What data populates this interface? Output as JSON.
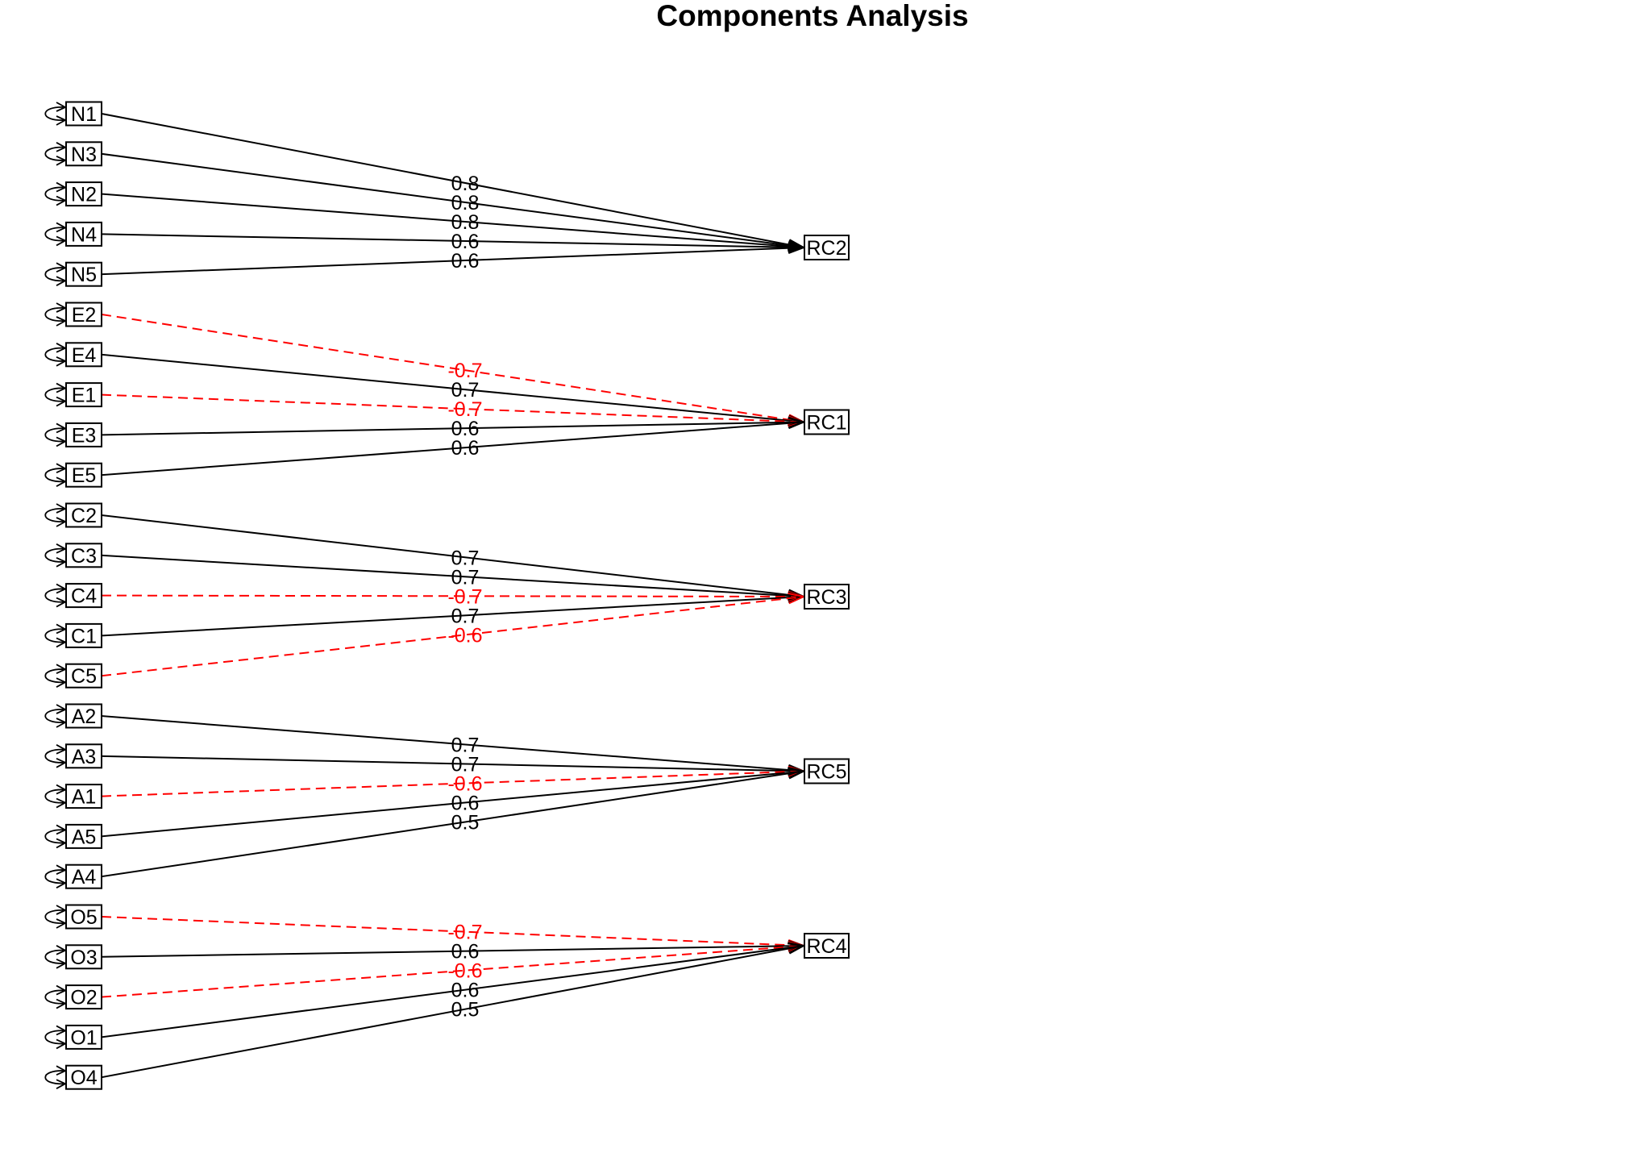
{
  "title": "Components Analysis",
  "colors": {
    "positive": "#000000",
    "negative": "#ff0000"
  },
  "factors": [
    "RC2",
    "RC1",
    "RC3",
    "RC5",
    "RC4"
  ],
  "variables": [
    "N1",
    "N3",
    "N2",
    "N4",
    "N5",
    "E2",
    "E4",
    "E1",
    "E3",
    "E5",
    "C2",
    "C3",
    "C4",
    "C1",
    "C5",
    "A2",
    "A3",
    "A1",
    "A5",
    "A4",
    "O5",
    "O3",
    "O2",
    "O1",
    "O4"
  ],
  "loadings": [
    {
      "from": "N1",
      "to": "RC2",
      "label": "0.8",
      "sign": "positive"
    },
    {
      "from": "N3",
      "to": "RC2",
      "label": "0.8",
      "sign": "positive"
    },
    {
      "from": "N2",
      "to": "RC2",
      "label": "0.8",
      "sign": "positive"
    },
    {
      "from": "N4",
      "to": "RC2",
      "label": "0.6",
      "sign": "positive"
    },
    {
      "from": "N5",
      "to": "RC2",
      "label": "0.6",
      "sign": "positive"
    },
    {
      "from": "E2",
      "to": "RC1",
      "label": "-0.7",
      "sign": "negative"
    },
    {
      "from": "E4",
      "to": "RC1",
      "label": "0.7",
      "sign": "positive"
    },
    {
      "from": "E1",
      "to": "RC1",
      "label": "-0.7",
      "sign": "negative"
    },
    {
      "from": "E3",
      "to": "RC1",
      "label": "0.6",
      "sign": "positive"
    },
    {
      "from": "E5",
      "to": "RC1",
      "label": "0.6",
      "sign": "positive"
    },
    {
      "from": "C2",
      "to": "RC3",
      "label": "0.7",
      "sign": "positive"
    },
    {
      "from": "C3",
      "to": "RC3",
      "label": "0.7",
      "sign": "positive"
    },
    {
      "from": "C4",
      "to": "RC3",
      "label": "-0.7",
      "sign": "negative"
    },
    {
      "from": "C1",
      "to": "RC3",
      "label": "0.7",
      "sign": "positive"
    },
    {
      "from": "C5",
      "to": "RC3",
      "label": "-0.6",
      "sign": "negative"
    },
    {
      "from": "A2",
      "to": "RC5",
      "label": "0.7",
      "sign": "positive"
    },
    {
      "from": "A3",
      "to": "RC5",
      "label": "0.7",
      "sign": "positive"
    },
    {
      "from": "A1",
      "to": "RC5",
      "label": "-0.6",
      "sign": "negative"
    },
    {
      "from": "A5",
      "to": "RC5",
      "label": "0.6",
      "sign": "positive"
    },
    {
      "from": "A4",
      "to": "RC5",
      "label": "0.5",
      "sign": "positive"
    },
    {
      "from": "O5",
      "to": "RC4",
      "label": "-0.7",
      "sign": "negative"
    },
    {
      "from": "O3",
      "to": "RC4",
      "label": "0.6",
      "sign": "positive"
    },
    {
      "from": "O2",
      "to": "RC4",
      "label": "-0.6",
      "sign": "negative"
    },
    {
      "from": "O1",
      "to": "RC4",
      "label": "0.6",
      "sign": "positive"
    },
    {
      "from": "O4",
      "to": "RC4",
      "label": "0.5",
      "sign": "positive"
    }
  ]
}
